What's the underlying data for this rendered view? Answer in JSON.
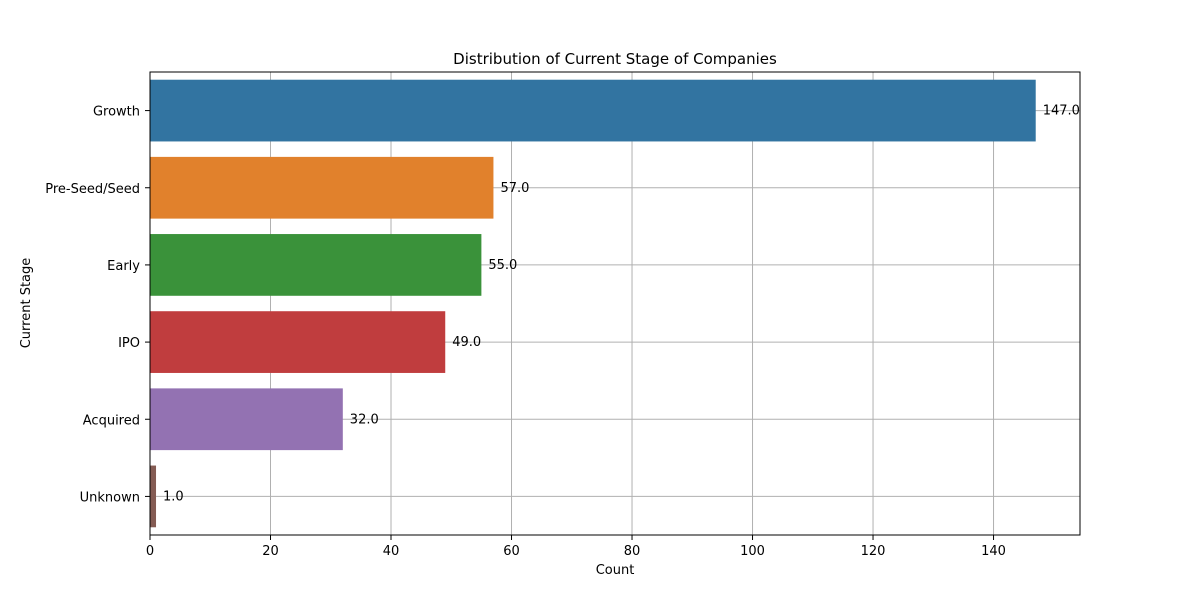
{
  "chart_data": {
    "type": "bar",
    "orientation": "horizontal",
    "title": "Distribution of Current Stage of Companies",
    "xlabel": "Count",
    "ylabel": "Current Stage",
    "categories": [
      "Growth",
      "Pre-Seed/Seed",
      "Early",
      "IPO",
      "Acquired",
      "Unknown"
    ],
    "values": [
      147,
      57,
      55,
      49,
      32,
      1
    ],
    "data_labels": [
      "147.0",
      "57.0",
      "55.0",
      "49.0",
      "32.0",
      "1.0"
    ],
    "colors": [
      "#3274a1",
      "#e1812c",
      "#3a923a",
      "#c03d3e",
      "#9372b2",
      "#845b53"
    ],
    "xlim": [
      0,
      154.35
    ],
    "xticks": [
      0,
      20,
      40,
      60,
      80,
      100,
      120,
      140
    ],
    "xtick_labels": [
      "0",
      "20",
      "40",
      "60",
      "80",
      "100",
      "120",
      "140"
    ],
    "grid": true
  }
}
